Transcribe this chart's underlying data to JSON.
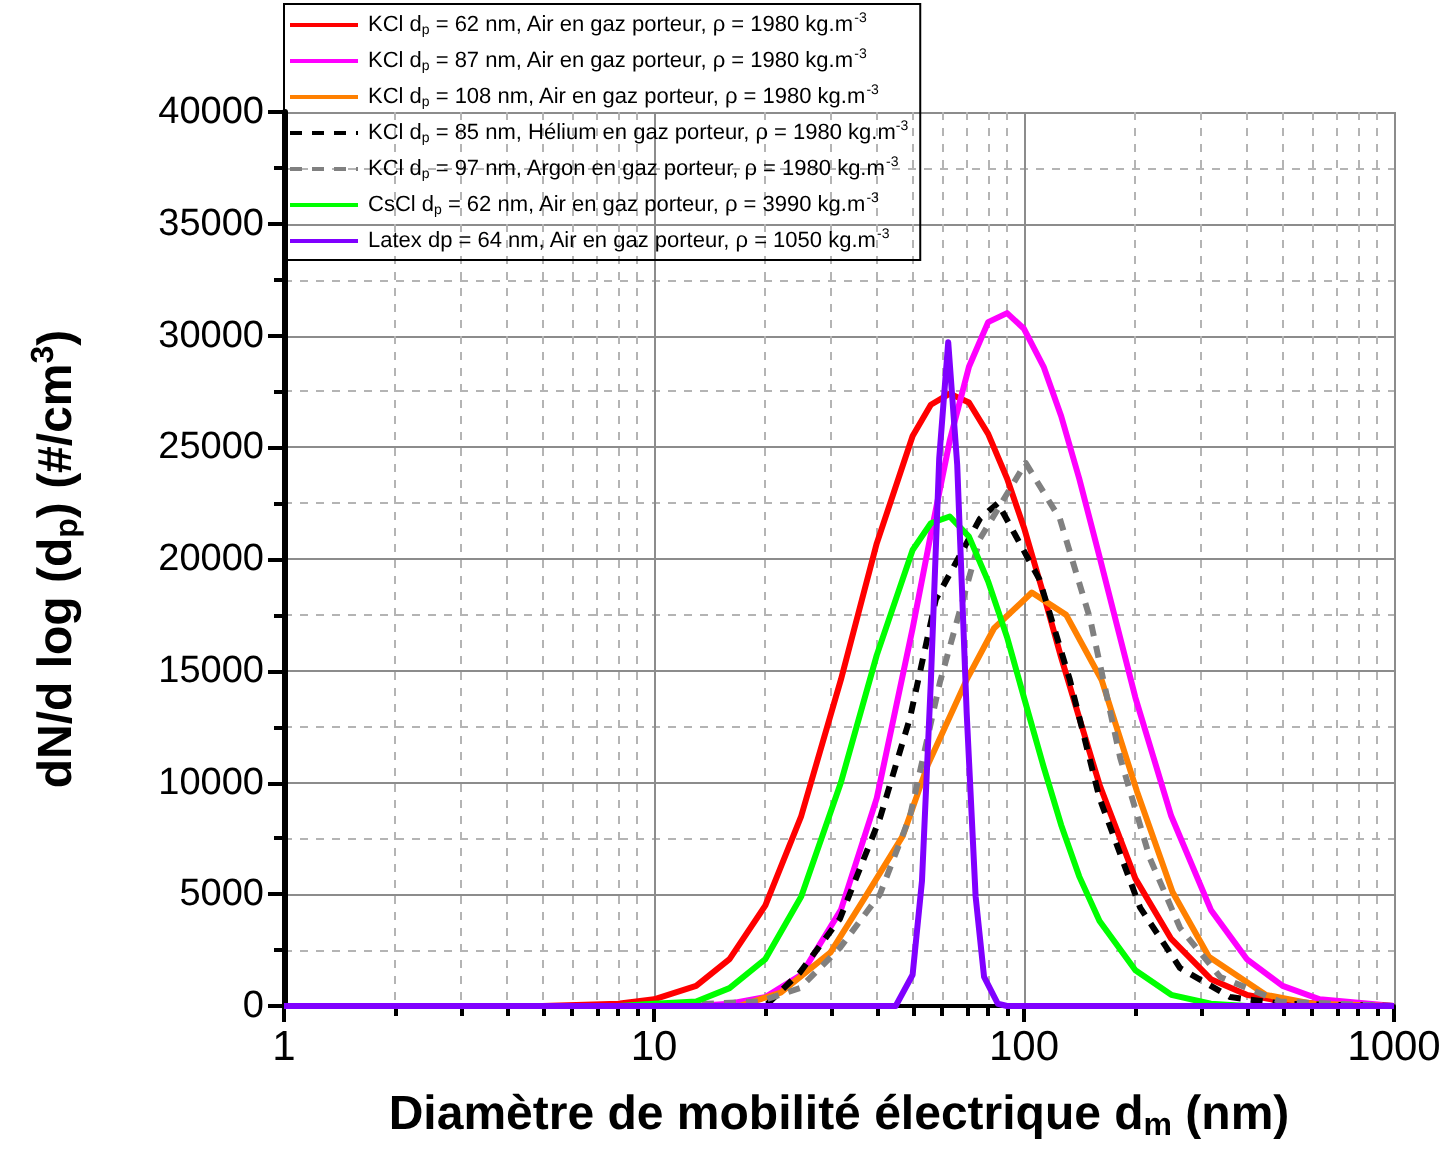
{
  "chart_data": {
    "type": "line",
    "xlabel": "Diamètre de mobilité électrique d$_{m}$ (nm)",
    "ylabel": "dN/d log (d$_{p}$) (#/cm$^{3}$)",
    "xlim": [
      1,
      1000
    ],
    "xticks": [
      1,
      10,
      100,
      1000
    ],
    "log": "x",
    "ylim": [
      0,
      40000
    ],
    "yticks": [
      0,
      5000,
      10000,
      15000,
      20000,
      25000,
      30000,
      35000,
      40000
    ],
    "grid": true,
    "legend": "top left",
    "series": [
      {
        "name": "KCl d$_{p}$ = 62 nm, Air en gaz porteur, ρ = 1980 kg.m$^{-3}$",
        "color": "#ff0000",
        "x": [
          1,
          5,
          8,
          10,
          13,
          16,
          20,
          25,
          32,
          40,
          50,
          56,
          63,
          71,
          80,
          90,
          100,
          113,
          126,
          141,
          160,
          200,
          250,
          320,
          400,
          500,
          630,
          1000
        ],
        "values": [
          0,
          0,
          100,
          300,
          900,
          2100,
          4500,
          8500,
          14600,
          20700,
          25500,
          26900,
          27400,
          27000,
          25600,
          23600,
          21400,
          18400,
          15600,
          12900,
          9900,
          5700,
          3000,
          1200,
          500,
          200,
          100,
          0
        ]
      },
      {
        "name": "KCl d$_{p}$ = 87 nm, Air en gaz porteur, ρ = 1980 kg.m$^{-3}$",
        "color": "#ff00ff",
        "x": [
          10,
          13,
          16,
          20,
          25,
          32,
          40,
          50,
          56,
          63,
          71,
          80,
          90,
          100,
          113,
          126,
          141,
          160,
          200,
          250,
          320,
          400,
          500,
          630,
          1000
        ],
        "values": [
          0,
          0,
          100,
          400,
          1400,
          4300,
          9300,
          16900,
          21100,
          25300,
          28600,
          30600,
          31000,
          30300,
          28600,
          26400,
          23600,
          20100,
          13800,
          8500,
          4300,
          2100,
          900,
          300,
          0
        ]
      },
      {
        "name": "KCl d$_{p}$ = 108 nm, Air en gaz porteur, ρ = 1980 kg.m$^{-3}$",
        "color": "#ff8000",
        "x": [
          1,
          10,
          17,
          22,
          30,
          37,
          47,
          55,
          70,
          83,
          105,
          130,
          162,
          202,
          252,
          316,
          450,
          600,
          1000
        ],
        "values": [
          0,
          0,
          0,
          600,
          2400,
          4800,
          7600,
          10800,
          14600,
          16900,
          18500,
          17500,
          14600,
          9600,
          5100,
          2200,
          500,
          100,
          0
        ]
      },
      {
        "name": "KCl d$_{p}$ = 85 nm, Hélium en gaz porteur, ρ = 1980 kg.m$^{-3}$",
        "color": "#000000",
        "line_style": "dashed",
        "x": [
          1,
          10,
          20,
          24.8,
          31.8,
          40.8,
          49.2,
          57.8,
          76,
          85,
          110,
          133,
          160,
          206,
          264,
          361,
          500,
          1000
        ],
        "values": [
          0,
          0,
          0,
          1500,
          3900,
          8400,
          12900,
          18200,
          21800,
          22500,
          19100,
          14600,
          9300,
          4400,
          1700,
          400,
          100,
          0
        ]
      },
      {
        "name": "KCl d$_{p}$ = 97 nm, Argon en gaz porteur, ρ = 1980 kg.m$^{-3}$",
        "color": "#808080",
        "line_style": "dashed",
        "x": [
          1,
          10,
          19.3,
          24.8,
          31.8,
          40.8,
          49.2,
          59.3,
          76,
          101,
          125,
          151,
          182,
          219,
          264,
          339,
          492,
          1000
        ],
        "values": [
          0,
          0,
          200,
          800,
          2600,
          5000,
          8500,
          14500,
          20900,
          24300,
          21800,
          17300,
          11100,
          6600,
          3500,
          1300,
          200,
          0
        ]
      },
      {
        "name": "CsCl d$_{p}$ = 62 nm, Air en gaz porteur, ρ = 3990 kg.m$^{-3}$",
        "color": "#00ff00",
        "x": [
          8,
          10,
          13,
          16,
          20,
          25,
          32,
          40,
          50,
          56,
          63,
          71,
          80,
          90,
          100,
          113,
          126,
          141,
          160,
          200,
          250,
          320,
          400,
          500
        ],
        "values": [
          0,
          100,
          200,
          800,
          2100,
          4900,
          10000,
          15700,
          20400,
          21600,
          21900,
          21000,
          19000,
          16500,
          13800,
          10700,
          8100,
          5800,
          3800,
          1600,
          500,
          100,
          0,
          0
        ]
      },
      {
        "name": "Latex dp = 64 nm, Air en gaz porteur, ρ = 1050 kg.m$^{-3}$",
        "color": "#8000ff",
        "x": [
          1,
          40,
          45,
          50,
          53,
          56,
          59,
          62.4,
          66,
          70,
          74,
          78,
          85,
          90,
          1000
        ],
        "values": [
          0,
          0,
          0,
          1400,
          5600,
          14500,
          24500,
          29700,
          24200,
          13100,
          4900,
          1300,
          100,
          0,
          0
        ]
      }
    ]
  }
}
